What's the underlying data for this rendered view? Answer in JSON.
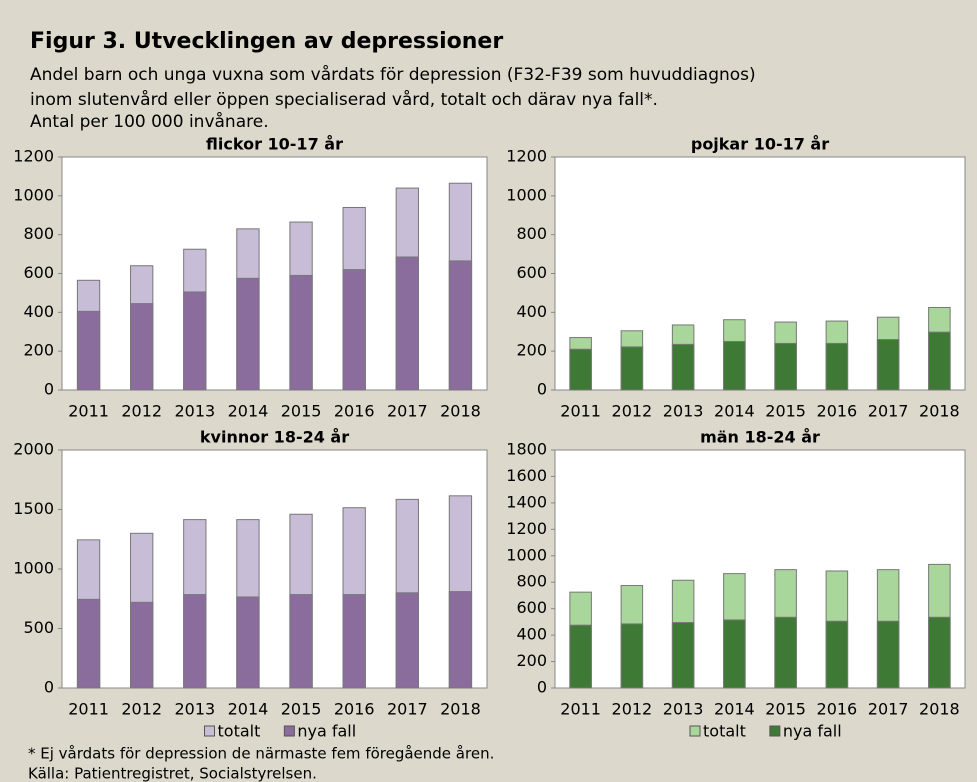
{
  "title": "Figur 3. Utvecklingen av depressioner",
  "subtitle": [
    "Andel barn och unga vuxna som vårdats för depression (F32-F39 som huvuddiagnos)",
    "inom slutenvård eller öppen specialiserad vård, totalt och därav nya fall*.",
    "Antal per 100 000 invånare."
  ],
  "footnotes": [
    "* Ej vårdats för depression de närmaste fem föregående åren.",
    "Källa: Patientregistret, Socialstyrelsen."
  ],
  "chart_data": [
    {
      "type": "bar",
      "title": "flickor 10-17 år",
      "categories": [
        "2011",
        "2012",
        "2013",
        "2014",
        "2015",
        "2016",
        "2017",
        "2018"
      ],
      "series": [
        {
          "color": "#c8bdd6",
          "values": [
            565,
            640,
            725,
            830,
            865,
            940,
            1040,
            1065
          ]
        },
        {
          "color": "#8a6d9d",
          "values": [
            405,
            445,
            505,
            575,
            590,
            620,
            685,
            665
          ]
        }
      ],
      "ylim": [
        0,
        1200
      ],
      "yticks": [
        0,
        200,
        400,
        600,
        800,
        1000,
        1200
      ],
      "grid": false
    },
    {
      "type": "bar",
      "title": "pojkar 10-17 år",
      "categories": [
        "2011",
        "2012",
        "2013",
        "2014",
        "2015",
        "2016",
        "2017",
        "2018"
      ],
      "series": [
        {
          "color": "#a9d69b",
          "values": [
            270,
            305,
            335,
            362,
            350,
            355,
            375,
            425
          ]
        },
        {
          "color": "#3e7a35",
          "values": [
            210,
            222,
            235,
            250,
            240,
            240,
            260,
            298
          ]
        }
      ],
      "ylim": [
        0,
        1200
      ],
      "yticks": [
        0,
        200,
        400,
        600,
        800,
        1000,
        1200
      ],
      "grid": false
    },
    {
      "type": "bar",
      "title": "kvinnor 18-24 år",
      "categories": [
        "2011",
        "2012",
        "2013",
        "2014",
        "2015",
        "2016",
        "2017",
        "2018"
      ],
      "series": [
        {
          "name": "totalt",
          "color": "#c8bdd6",
          "values": [
            1245,
            1300,
            1415,
            1415,
            1460,
            1515,
            1585,
            1615
          ]
        },
        {
          "name": "nya fall",
          "color": "#8a6d9d",
          "values": [
            745,
            720,
            785,
            765,
            785,
            785,
            800,
            810
          ]
        }
      ],
      "ylim": [
        0,
        2000
      ],
      "yticks": [
        0,
        500,
        1000,
        1500,
        2000
      ],
      "grid": false,
      "legend": "bottom"
    },
    {
      "type": "bar",
      "title": "män 18-24 år",
      "categories": [
        "2011",
        "2012",
        "2013",
        "2014",
        "2015",
        "2016",
        "2017",
        "2018"
      ],
      "series": [
        {
          "name": "totalt",
          "color": "#a9d69b",
          "values": [
            725,
            775,
            815,
            865,
            895,
            885,
            895,
            935
          ]
        },
        {
          "name": "nya fall",
          "color": "#3e7a35",
          "values": [
            475,
            485,
            495,
            515,
            535,
            505,
            505,
            535
          ]
        }
      ],
      "ylim": [
        0,
        1800
      ],
      "yticks": [
        0,
        200,
        400,
        600,
        800,
        1000,
        1200,
        1400,
        1600,
        1800
      ],
      "grid": false,
      "legend": "bottom"
    }
  ]
}
